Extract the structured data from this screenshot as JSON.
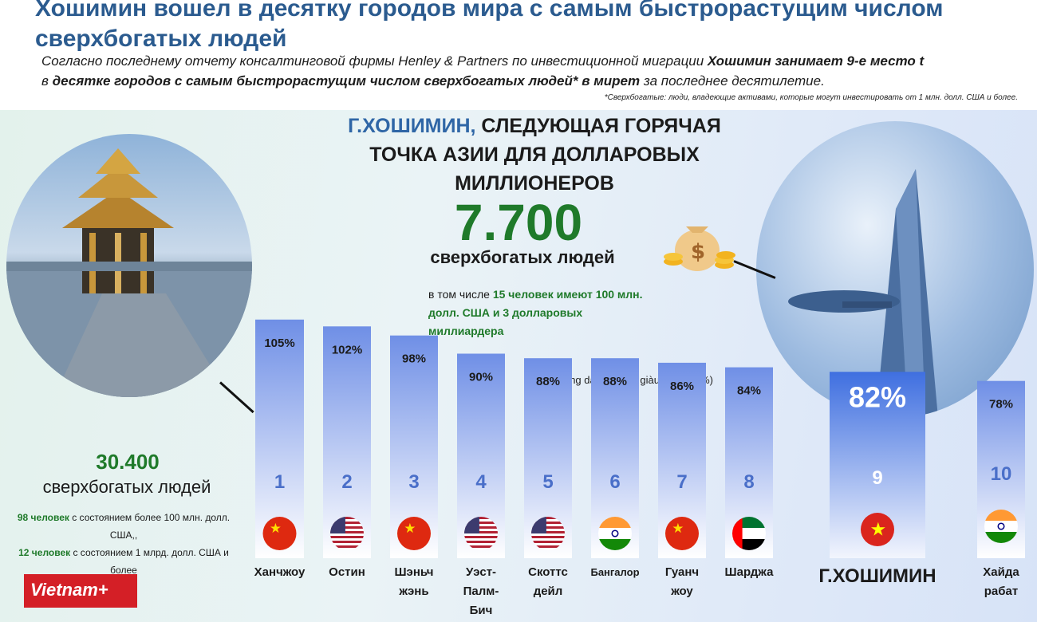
{
  "headline": "Хошимин вошел в десятку городов мира с самым быстрорастущим числом сверхбогатых людей",
  "intro": {
    "part1": "Согласно последнему отчету консалтинговой фирмы Henley & Partners по инвестиционной миграции ",
    "bold1": "Хошимин занимает 9-е место t",
    "part2": " в ",
    "bold2": "десятке городов с самым быстрорастущим числом сверхбогатых людей* в мирет",
    "part3": " за последнее десятилетие."
  },
  "footnote": "*Сверхбогатые: люди, владеющие активами, которые могут инвестировать от 1 млн. долл. США и более.",
  "subhead": {
    "highlight": "Г.ХОШИМИН,",
    "rest": " СЛЕДУЮЩАЯ ГОРЯЧАЯ ТОЧКА АЗИИ ДЛЯ ДОЛЛАРОВЫХ МИЛЛИОНЕРОВ"
  },
  "hcm": {
    "number": "7.700",
    "label": "сверхбогатых людей",
    "detail_prefix": "в том числе ",
    "detail": "15 человек имеют 100 млн. долл. США и 3 долларовых миллиардера"
  },
  "hangzhou": {
    "number": "30.400",
    "label": "сверхбогатых людей",
    "detail_green1": "98 человек",
    "detail_text1": " с состоянием более 100 млн. долл. США,,",
    "detail_green2": "12 человек",
    "detail_text2": " с состоянием 1 млрд. долл. США и более"
  },
  "logo": "Vietnam+",
  "colors": {
    "bar_top": "#6f8fe6",
    "bar_bottom": "#ffffff",
    "hcm_bar": "#3f6fe0",
    "accent_green": "#1f7a2a",
    "title_blue": "#2b5b8f"
  },
  "chart_data": {
    "type": "bar",
    "title": "Tốc độ tăng dân số siêu giàu (đơn vị: %)",
    "ylim": [
      0,
      110
    ],
    "grid": false,
    "legend": "none",
    "categories": [
      "Ханчжоу",
      "Остин",
      "Шэньчжэнь",
      "Уэст-Палм-Бич",
      "Скоттсдейл",
      "Бангалор",
      "Гуанчжоу",
      "Шарджа",
      "Г.ХОШИМИН",
      "Хайдарабат"
    ],
    "category_display": [
      "Ханчжоу",
      "Остин",
      "Шэньч\nжэнь",
      "Уэст-\nПалм-\nБич",
      "Скоттс\nдейл",
      "Бангалор",
      "Гуанч\nжоу",
      "Шарджа",
      "Г.ХОШИМИН",
      "Хайда\nрабат"
    ],
    "values": [
      105,
      102,
      98,
      90,
      88,
      88,
      86,
      84,
      82,
      78
    ],
    "value_labels": [
      "105%",
      "102%",
      "98%",
      "90%",
      "88%",
      "88%",
      "86%",
      "84%",
      "82%",
      "78%"
    ],
    "ranks": [
      "1",
      "2",
      "3",
      "4",
      "5",
      "6",
      "7",
      "8",
      "9",
      "10"
    ],
    "flags": [
      "china",
      "usa",
      "china",
      "usa",
      "usa",
      "india",
      "china",
      "uae",
      "vietnam",
      "india"
    ]
  }
}
